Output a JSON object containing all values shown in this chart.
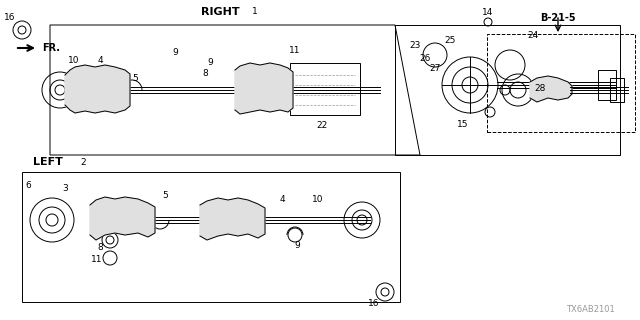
{
  "title": "",
  "bg_color": "#ffffff",
  "line_color": "#000000",
  "fig_width": 6.4,
  "fig_height": 3.2,
  "dpi": 100,
  "part_number_label": "TX6AB2101",
  "right_label": "RIGHT",
  "left_label": "LEFT",
  "ref_label": "B-21-5",
  "fr_label": "FR.",
  "gray": "#888888",
  "light_gray": "#cccccc",
  "dark": "#222222"
}
